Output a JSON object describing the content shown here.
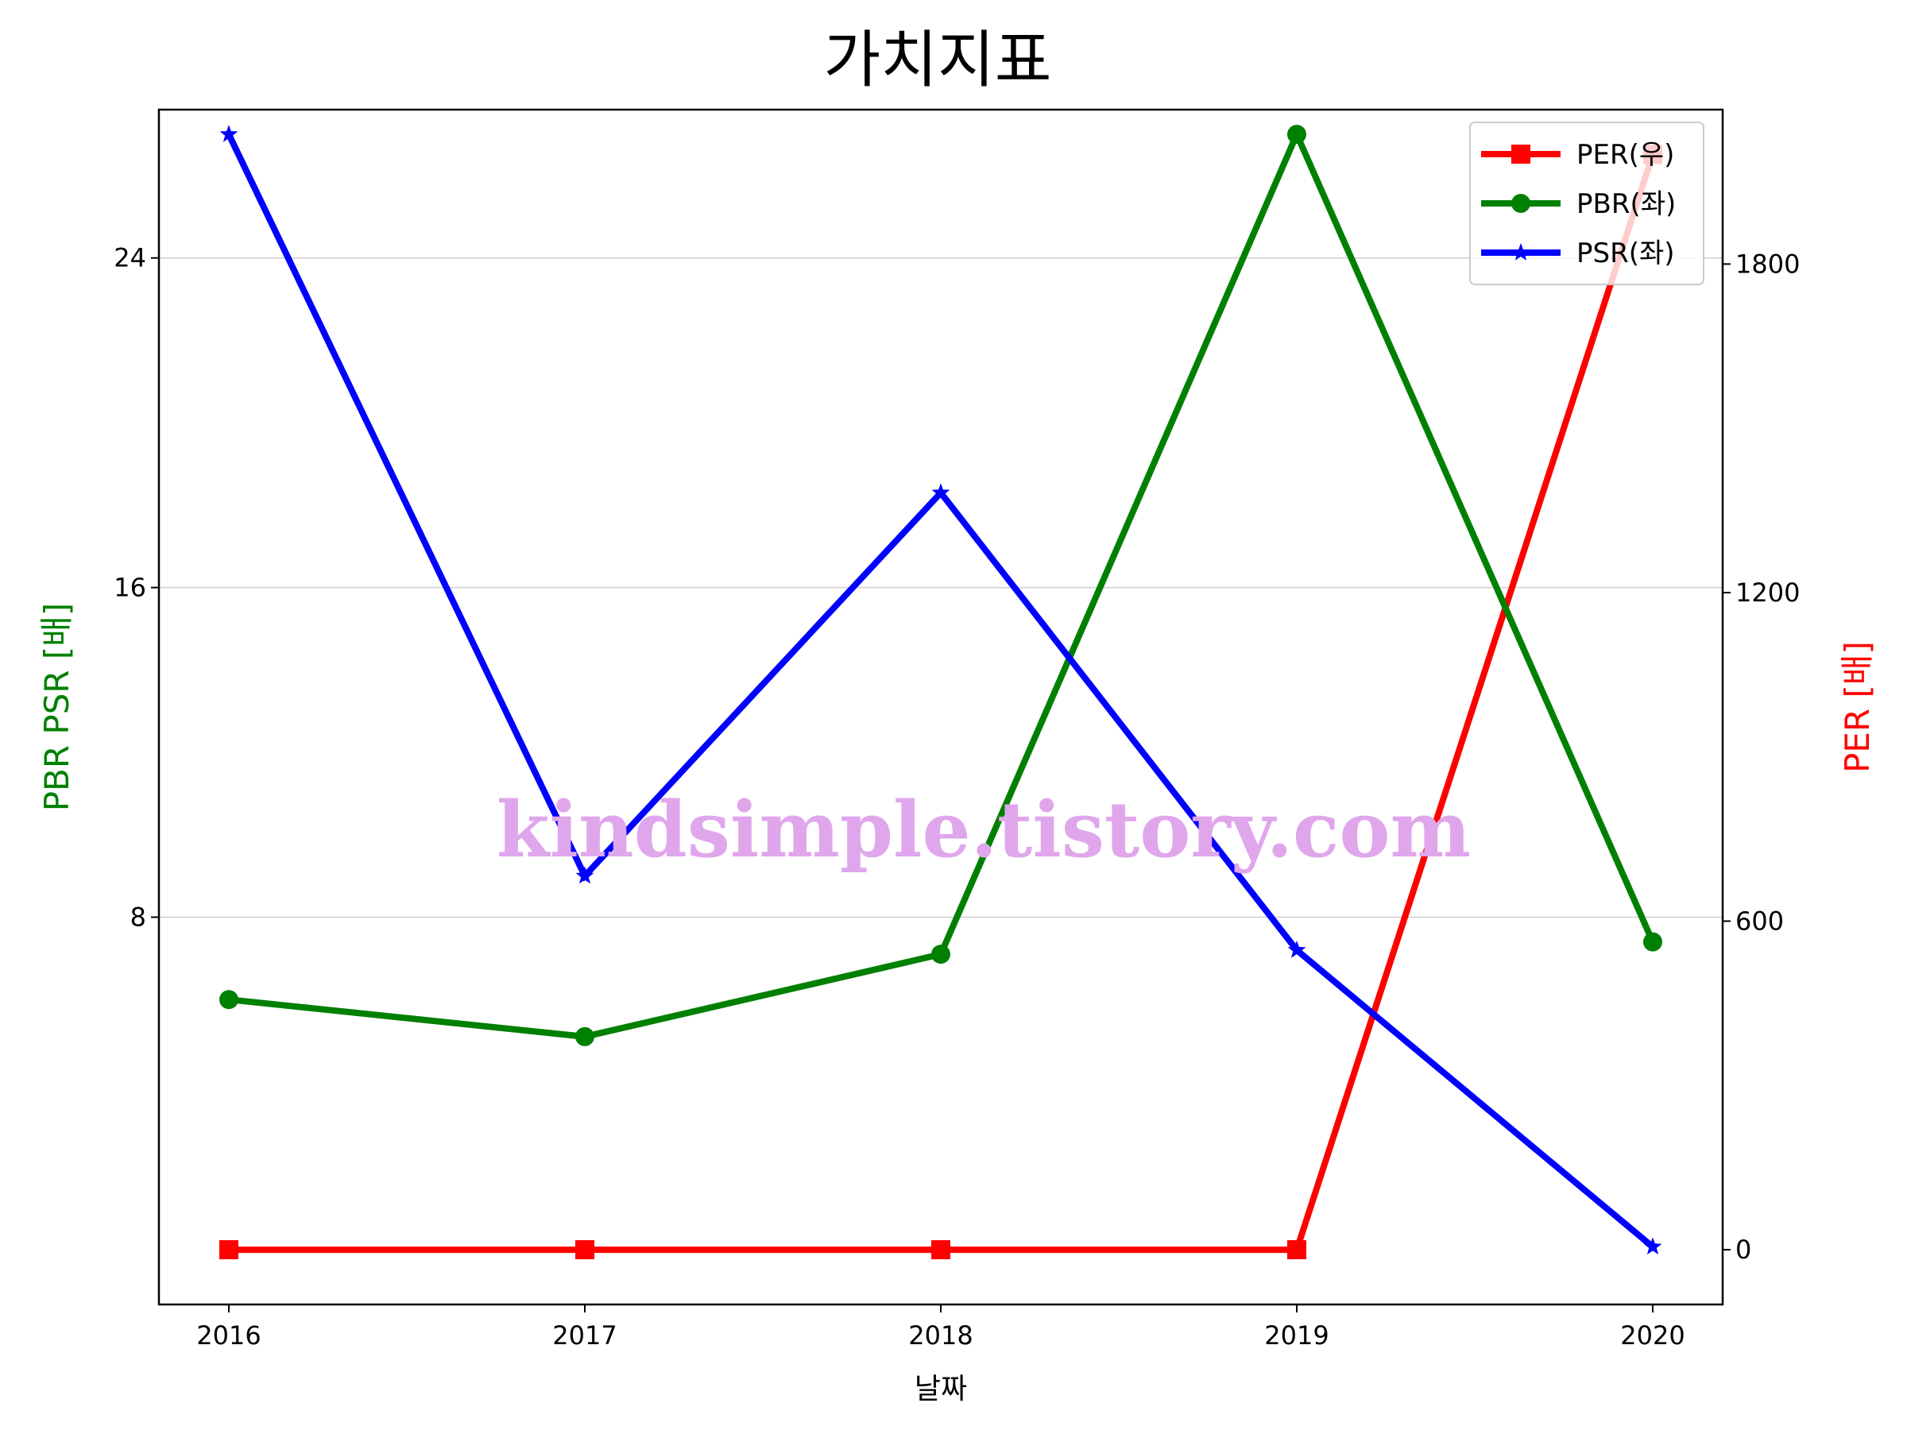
{
  "chart_data": {
    "type": "line",
    "title": "가치지표",
    "xlabel": "날짜",
    "ylabel_left": "PBR PSR [배]",
    "ylabel_right": "PER [배]",
    "x": [
      2016,
      2017,
      2018,
      2019,
      2020
    ],
    "x_ticks": [
      "2016",
      "2017",
      "2018",
      "2019",
      "2020"
    ],
    "ylim_left": [
      -1.4,
      27.6
    ],
    "yticks_left": [
      8,
      16,
      24
    ],
    "ylim_right": [
      -100,
      2082
    ],
    "yticks_right": [
      0,
      600,
      1200,
      1800
    ],
    "grid": "y-left",
    "legend_position": "top-right",
    "series": [
      {
        "name": "PER(우)",
        "axis": "right",
        "color": "#ff0000",
        "marker": "square",
        "values": [
          0,
          0,
          0,
          0,
          2000
        ]
      },
      {
        "name": "PBR(좌)",
        "axis": "left",
        "color": "#008000",
        "marker": "circle",
        "values": [
          6.0,
          5.1,
          7.1,
          27.0,
          7.4
        ]
      },
      {
        "name": "PSR(좌)",
        "axis": "left",
        "color": "#0000ff",
        "marker": "star",
        "values": [
          27.0,
          9.0,
          18.3,
          7.2,
          0.0
        ]
      }
    ]
  },
  "watermark": "kindsimple.tistory.com"
}
